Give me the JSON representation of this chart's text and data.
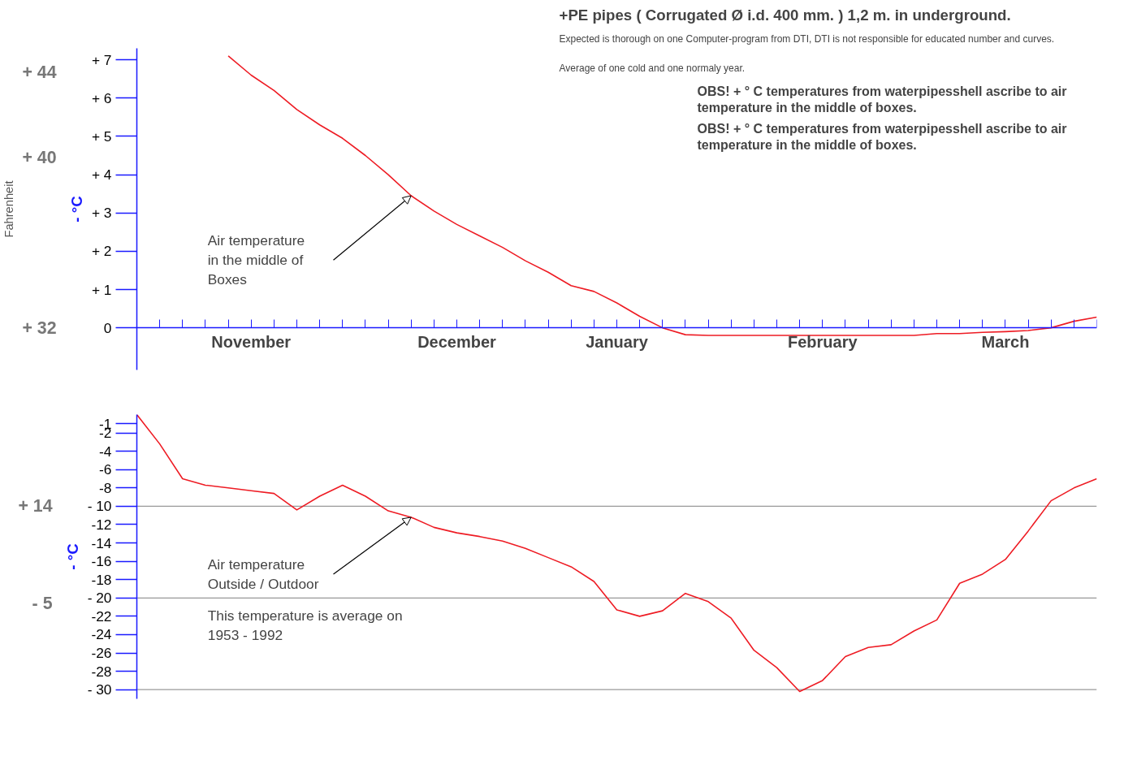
{
  "chart_data": [
    {
      "type": "line",
      "title": "+PE pipes ( Corrugated Ø i.d. 400 mm. ) 1,2 m. in underground.",
      "subtitle": "Expected is thorough on one Computer-program from DTI, DTI is not responsible for educated number and curves.",
      "annotations": [
        "Average of one cold and one normaly year.",
        "OBS! + ° C temperatures from waterpipesshell ascribe to air temperature in the middle of boxes.",
        "OBS! + ° C temperatures from waterpipesshell ascribe to air temperature in the middle of boxes."
      ],
      "ylabel": "- °C",
      "y2label": "Fahrenheit",
      "categories": [
        null,
        null,
        null,
        null,
        null,
        "November",
        null,
        null,
        null,
        null,
        null,
        null,
        null,
        null,
        "December",
        null,
        null,
        null,
        null,
        null,
        null,
        "January",
        null,
        null,
        null,
        null,
        null,
        null,
        null,
        null,
        "February",
        null,
        null,
        null,
        null,
        null,
        null,
        null,
        "March",
        null,
        null,
        null,
        null
      ],
      "series": [
        {
          "name": "Air temperature in the middle of Boxes",
          "color": "#ee1c24",
          "values": [
            null,
            null,
            null,
            null,
            7.1,
            6.6,
            6.2,
            5.7,
            5.3,
            4.95,
            4.5,
            4.0,
            3.45,
            3.05,
            2.7,
            2.4,
            2.1,
            1.75,
            1.45,
            1.1,
            0.95,
            0.65,
            0.3,
            0,
            -0.18,
            -0.2,
            -0.2,
            -0.2,
            -0.2,
            -0.2,
            -0.2,
            -0.2,
            -0.2,
            -0.2,
            -0.2,
            -0.15,
            -0.15,
            -0.12,
            -0.1,
            -0.07,
            0,
            0.17,
            0.28
          ]
        }
      ],
      "ylim": [
        -1.1,
        7.3
      ],
      "yticks": [
        {
          "value": 0,
          "label": "0"
        },
        {
          "value": 1,
          "label": "+ 1"
        },
        {
          "value": 2,
          "label": "+ 2"
        },
        {
          "value": 3,
          "label": "+ 3"
        },
        {
          "value": 4,
          "label": "+ 4"
        },
        {
          "value": 5,
          "label": "+ 5"
        },
        {
          "value": 6,
          "label": "+ 6"
        },
        {
          "value": 7,
          "label": "+ 7"
        }
      ],
      "y2lim": [
        30.02,
        45.14
      ],
      "y2ticks": [
        {
          "value": 32,
          "label": "+ 32"
        },
        {
          "value": 40,
          "label": "+ 40"
        },
        {
          "value": 44,
          "label": "+ 44"
        }
      ]
    },
    {
      "type": "line",
      "annotations": [
        "This temperature is average on 1953 - 1992"
      ],
      "ylabel": "- °C",
      "tick_labels": "y",
      "series": [
        {
          "name": "Air temperature Outside / Outdoor",
          "color": "#ee1c24",
          "values": [
            0,
            -3.2,
            -7,
            -7.7,
            -8,
            -8.3,
            -8.6,
            -10.4,
            -8.9,
            -7.7,
            -8.9,
            -10.5,
            -11.2,
            -12.3,
            -12.9,
            -13.3,
            -13.8,
            -14.6,
            -15.6,
            -16.6,
            -18.2,
            -21.3,
            -22,
            -21.4,
            -19.5,
            -20.4,
            -22.2,
            -25.7,
            -27.6,
            -30.2,
            -29,
            -26.4,
            -25.4,
            -25.1,
            -23.6,
            -22.4,
            -18.4,
            -17.4,
            -15.8,
            -12.7,
            -9.4,
            -8,
            -7
          ]
        }
      ],
      "ylim": [
        -31,
        0
      ],
      "yticks": [
        -1,
        -2,
        -4,
        -6,
        -8,
        {
          "value": -10,
          "label": "- 10"
        },
        -12,
        -14,
        -16,
        -18,
        {
          "value": -20,
          "label": "- 20"
        },
        -22,
        -24,
        -26,
        -28,
        {
          "value": -30,
          "label": "- 30"
        }
      ],
      "y2lim": [
        -23.8,
        32
      ],
      "y2ticks": [
        {
          "value": 14,
          "label": "+ 14"
        },
        {
          "value": -5,
          "label": "- 5"
        }
      ],
      "ref_lines": [
        {
          "axis": "y",
          "value": -10,
          "color": "#999999"
        },
        {
          "axis": "y",
          "value": -20,
          "color": "#999999"
        },
        {
          "axis": "y",
          "value": -30,
          "color": "#999999"
        }
      ]
    }
  ]
}
